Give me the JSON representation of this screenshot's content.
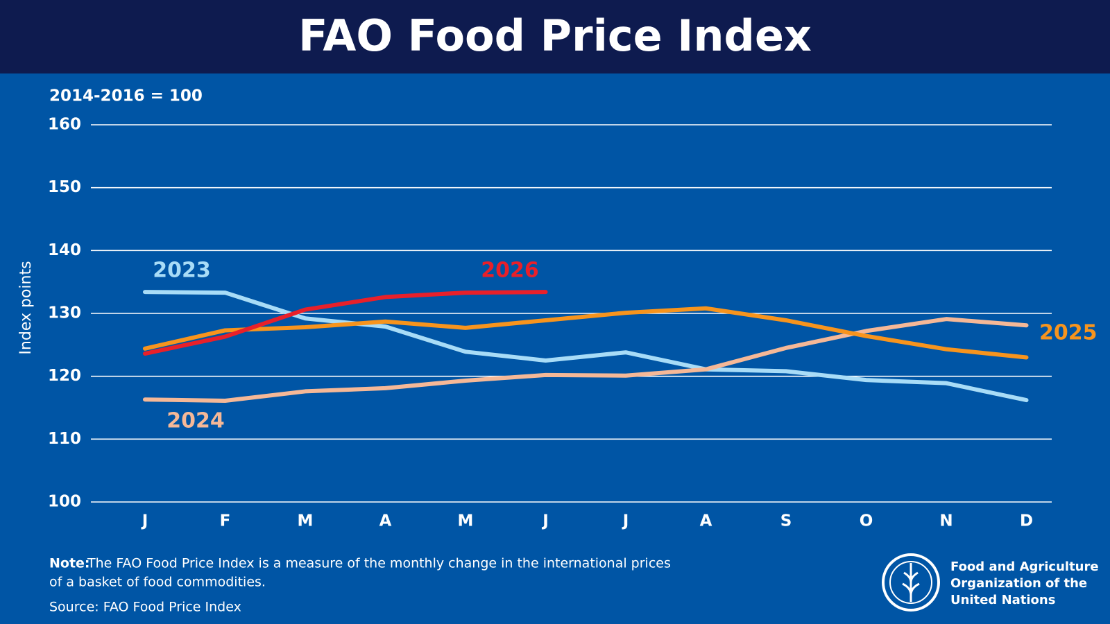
{
  "chart_data": {
    "type": "line",
    "title": "FAO Food Price Index",
    "subtitle": "2014-2016 = 100",
    "y_label": "Index points",
    "categories": [
      "J",
      "F",
      "M",
      "A",
      "M",
      "J",
      "J",
      "A",
      "S",
      "O",
      "N",
      "D"
    ],
    "series": [
      {
        "name": "2023",
        "color": "#a8dcf7",
        "values": [
          133.4,
          133.3,
          129.2,
          127.9,
          123.9,
          122.5,
          123.8,
          121.1,
          120.8,
          119.4,
          118.9,
          116.2
        ]
      },
      {
        "name": "2024",
        "color": "#f5b897",
        "values": [
          116.3,
          116.1,
          117.6,
          118.1,
          119.3,
          120.2,
          120.1,
          121.1,
          124.5,
          127.2,
          129.1,
          128.1
        ]
      },
      {
        "name": "2025",
        "color": "#f7941d",
        "values": [
          124.4,
          127.3,
          127.8,
          128.7,
          127.7,
          128.9,
          130.1,
          130.8,
          128.9,
          126.4,
          124.3,
          123.0
        ]
      },
      {
        "name": "2026",
        "color": "#e8202a",
        "values": [
          123.6,
          126.3,
          130.6,
          132.6,
          133.3,
          133.4,
          null,
          null,
          null,
          null,
          null,
          null
        ]
      }
    ],
    "ylim": [
      100,
      160
    ],
    "yticks": [
      100,
      110,
      120,
      130,
      140,
      150,
      160
    ],
    "grid": true,
    "note_label": "Note:",
    "note_lines": [
      "The FAO Food Price Index is a measure of the monthly change in the international prices",
      "of a basket of food commodities."
    ],
    "source": "Source: FAO Food Price Index",
    "organization": [
      "Food and Agriculture",
      "Organization of the",
      "United Nations"
    ]
  }
}
